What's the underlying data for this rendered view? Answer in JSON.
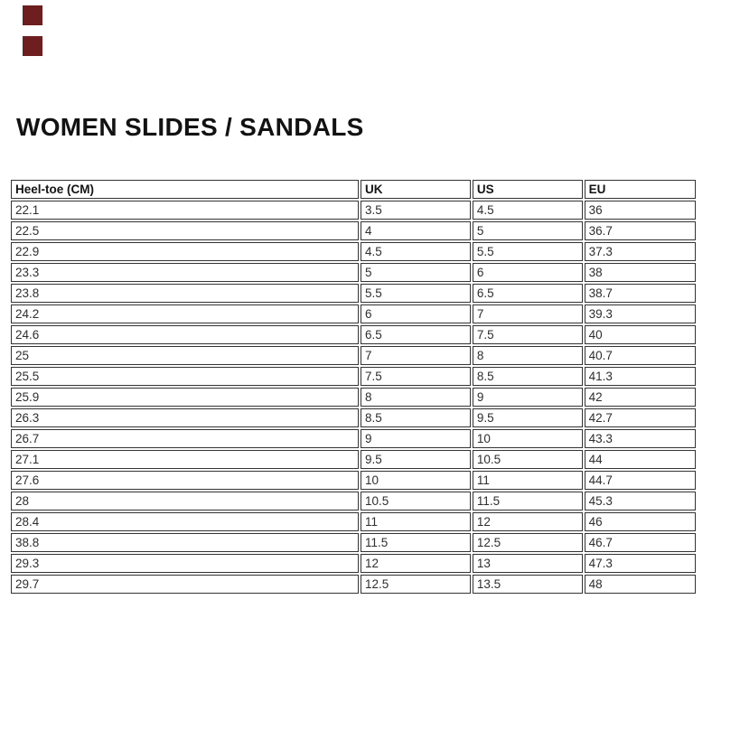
{
  "title": "WOMEN SLIDES / SANDALS",
  "decorations": {
    "marks": [
      {
        "name": "corner-mark-top",
        "color": "#6e1e1e"
      },
      {
        "name": "corner-mark-bottom",
        "color": "#6e1e1e"
      }
    ]
  },
  "table": {
    "headers": [
      {
        "key": "heel_toe_cm",
        "label": "Heel-toe (CM)"
      },
      {
        "key": "uk",
        "label": "UK"
      },
      {
        "key": "us",
        "label": "US"
      },
      {
        "key": "eu",
        "label": "EU"
      }
    ],
    "rows": [
      [
        "22.1",
        "3.5",
        "4.5",
        "36"
      ],
      [
        "22.5",
        "4",
        "5",
        "36.7"
      ],
      [
        "22.9",
        "4.5",
        "5.5",
        "37.3"
      ],
      [
        "23.3",
        "5",
        "6",
        "38"
      ],
      [
        "23.8",
        "5.5",
        "6.5",
        "38.7"
      ],
      [
        "24.2",
        "6",
        "7",
        "39.3"
      ],
      [
        "24.6",
        "6.5",
        "7.5",
        "40"
      ],
      [
        "25",
        "7",
        "8",
        "40.7"
      ],
      [
        "25.5",
        "7.5",
        "8.5",
        "41.3"
      ],
      [
        "25.9",
        "8",
        "9",
        "42"
      ],
      [
        "26.3",
        "8.5",
        "9.5",
        "42.7"
      ],
      [
        "26.7",
        "9",
        "10",
        "43.3"
      ],
      [
        "27.1",
        "9.5",
        "10.5",
        "44"
      ],
      [
        "27.6",
        "10",
        "11",
        "44.7"
      ],
      [
        "28",
        "10.5",
        "11.5",
        "45.3"
      ],
      [
        "28.4",
        "11",
        "12",
        "46"
      ],
      [
        "38.8",
        "11.5",
        "12.5",
        "46.7"
      ],
      [
        "29.3",
        "12",
        "13",
        "47.3"
      ],
      [
        "29.7",
        "12.5",
        "13.5",
        "48"
      ]
    ]
  },
  "colors": {
    "border": "#333333",
    "text": "#2e2e2e",
    "title": "#121212",
    "background": "#ffffff"
  }
}
